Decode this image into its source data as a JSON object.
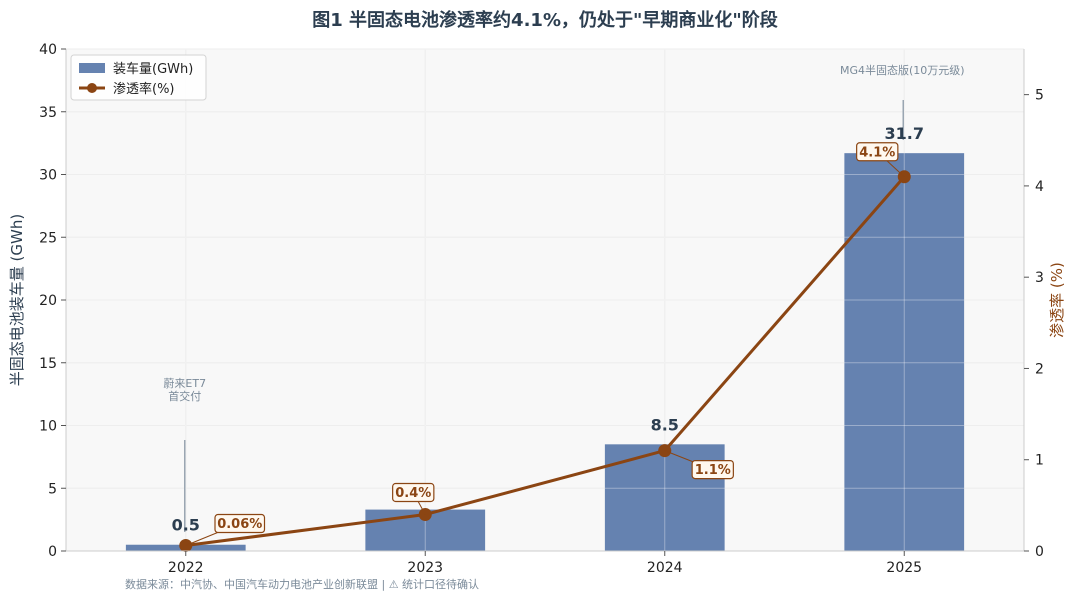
{
  "chart_data": {
    "type": "bar",
    "title": "图1  半固态电池渗透率约4.1%，仍处于\"早期商业化\"阶段",
    "categories": [
      "2022",
      "2023",
      "2024",
      "2025"
    ],
    "series": [
      {
        "name": "装车量(GWh)",
        "kind": "bar",
        "axis": "left",
        "values": [
          0.5,
          3.3,
          8.5,
          31.7
        ],
        "labels": [
          "0.5",
          "",
          "8.5",
          "31.7"
        ]
      },
      {
        "name": "渗透率(%)",
        "kind": "line",
        "axis": "right",
        "values": [
          0.06,
          0.4,
          1.1,
          4.1
        ],
        "labels": [
          "0.06%",
          "0.4%",
          "1.1%",
          "4.1%"
        ]
      }
    ],
    "ylabel": "半固态电池装车量 (GWh)",
    "y2label": "渗透率 (%)",
    "ylim": [
      0,
      40
    ],
    "y2lim": [
      0,
      5.5
    ],
    "yticks": [
      0,
      5,
      10,
      15,
      20,
      25,
      30,
      35,
      40
    ],
    "y2ticks": [
      0,
      1,
      2,
      3,
      4,
      5
    ],
    "grid": true,
    "legend_position": "top-left",
    "annotations": [
      {
        "category": "2022",
        "lines": [
          "蔚来ET7",
          "首交付"
        ]
      },
      {
        "category": "2025",
        "lines": [
          "MG4半固态版(10万元级)"
        ]
      }
    ],
    "source": "数据来源：中汽协、中国汽车动力电池产业创新联盟 | ⚠ 统计口径待确认",
    "colors": {
      "bar": "#6582b0",
      "line": "#8b4513",
      "plot_bg": "#f8f8f8",
      "grid": "#e6e6e6",
      "annotation": "#7a8a99",
      "title": "#2c3e50"
    }
  }
}
